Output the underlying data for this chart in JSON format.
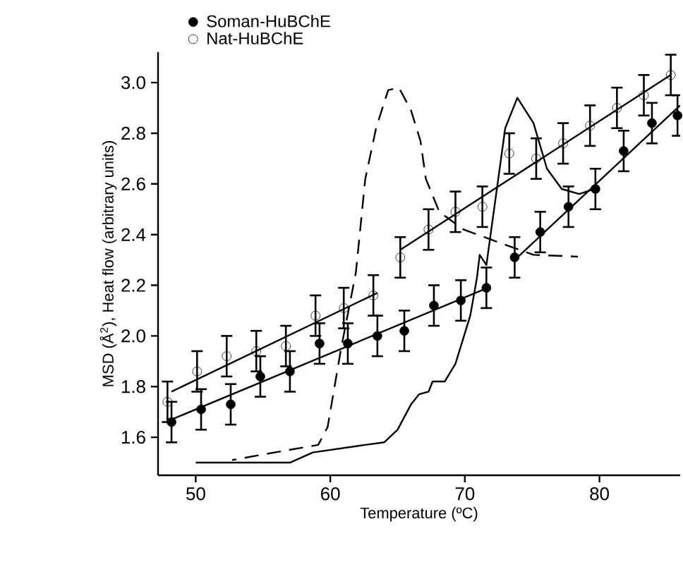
{
  "chart_data": {
    "type": "scatter",
    "xlabel": "Temperature (ºC)",
    "ylabel": "MSD (Å$^{2}$), Heat flow (arbitrary units)",
    "xlim": [
      47.2,
      86
    ],
    "xticks": [
      50,
      60,
      70,
      80
    ],
    "ylim": [
      1.45,
      3.12
    ],
    "yticks": [
      1.6,
      1.8,
      {
        "value": 2,
        "label": "2.0"
      },
      2.2,
      2.4,
      2.6,
      2.8,
      {
        "value": 3,
        "label": "3.0"
      }
    ],
    "legend": "top left",
    "grid": false,
    "series": [
      {
        "name": "Soman-HuBChE",
        "color": "#000000",
        "marker": "circle",
        "x": [
          48.2,
          50.4,
          52.6,
          54.8,
          57,
          59.2,
          61.3,
          63.5,
          65.5,
          67.7,
          69.7,
          71.6,
          73.7,
          75.6,
          77.7,
          79.7,
          81.8,
          83.9,
          85.8
        ],
        "values": [
          1.66,
          1.71,
          1.73,
          1.84,
          1.86,
          1.97,
          1.97,
          2.0,
          2.02,
          2.12,
          2.14,
          2.19,
          2.31,
          2.41,
          2.51,
          2.58,
          2.73,
          2.84,
          2.87
        ],
        "errors": [
          0.08,
          0.08,
          0.08,
          0.08,
          0.08,
          0.08,
          0.08,
          0.08,
          0.08,
          0.08,
          0.08,
          0.08,
          0.08,
          0.08,
          0.08,
          0.08,
          0.08,
          0.08,
          0.08
        ]
      },
      {
        "name": "Nat-HuBChE",
        "color": "#000000",
        "marker": "open circle",
        "x": [
          47.9,
          50.1,
          52.3,
          54.5,
          56.7,
          58.9,
          61.0,
          63.2,
          65.2,
          67.3,
          69.3,
          71.3,
          73.3,
          75.3,
          77.3,
          79.3,
          81.3,
          83.3,
          85.3
        ],
        "values": [
          1.74,
          1.86,
          1.92,
          1.94,
          1.96,
          2.08,
          2.11,
          2.16,
          2.31,
          2.42,
          2.49,
          2.51,
          2.72,
          2.7,
          2.76,
          2.83,
          2.9,
          2.95,
          3.03
        ],
        "errors": [
          0.08,
          0.08,
          0.08,
          0.08,
          0.08,
          0.08,
          0.08,
          0.08,
          0.08,
          0.08,
          0.08,
          0.08,
          0.08,
          0.08,
          0.08,
          0.08,
          0.08,
          0.08,
          0.08
        ]
      },
      {
        "type": "line",
        "color": "#000000",
        "x": [
          48.2,
          71.7
        ],
        "values": [
          1.67,
          2.19
        ]
      },
      {
        "type": "line",
        "color": "#000000",
        "x": [
          73.7,
          86
        ],
        "values": [
          2.3,
          2.91
        ]
      },
      {
        "type": "line",
        "color": "#000000",
        "x": [
          48.2,
          63.5
        ],
        "values": [
          1.78,
          2.17
        ]
      },
      {
        "type": "line",
        "color": "#000000",
        "x": [
          65.2,
          85.3
        ],
        "values": [
          2.34,
          3.03
        ]
      },
      {
        "type": "line",
        "color": "#000000",
        "line_style": "solid",
        "x": [
          50,
          57,
          58.7,
          62.6,
          64,
          65,
          66,
          66.6,
          67.3,
          67.6,
          68.5,
          69.3,
          70.4,
          70.9,
          71.1,
          71.6,
          73.0,
          73.9,
          75.1,
          76.1,
          77.2,
          78.5,
          79.6
        ],
        "values": [
          1.5,
          1.5,
          1.54,
          1.57,
          1.58,
          1.63,
          1.73,
          1.77,
          1.78,
          1.82,
          1.82,
          1.89,
          2.08,
          2.23,
          2.32,
          2.28,
          2.82,
          2.94,
          2.84,
          2.66,
          2.58,
          2.56,
          2.58
        ]
      },
      {
        "type": "line",
        "color": "#000000",
        "line_style": "dashed",
        "x": [
          52.7,
          55.3,
          59.1,
          59.8,
          60.8,
          61.9,
          62.6,
          63.4,
          64.3,
          65.1,
          66.0,
          66.7,
          67.1,
          68.1,
          69.9,
          73.0,
          75.1,
          78.4
        ],
        "values": [
          1.51,
          1.535,
          1.57,
          1.64,
          1.95,
          2.25,
          2.62,
          2.82,
          2.97,
          2.98,
          2.89,
          2.77,
          2.62,
          2.49,
          2.42,
          2.36,
          2.32,
          2.313
        ]
      }
    ]
  }
}
